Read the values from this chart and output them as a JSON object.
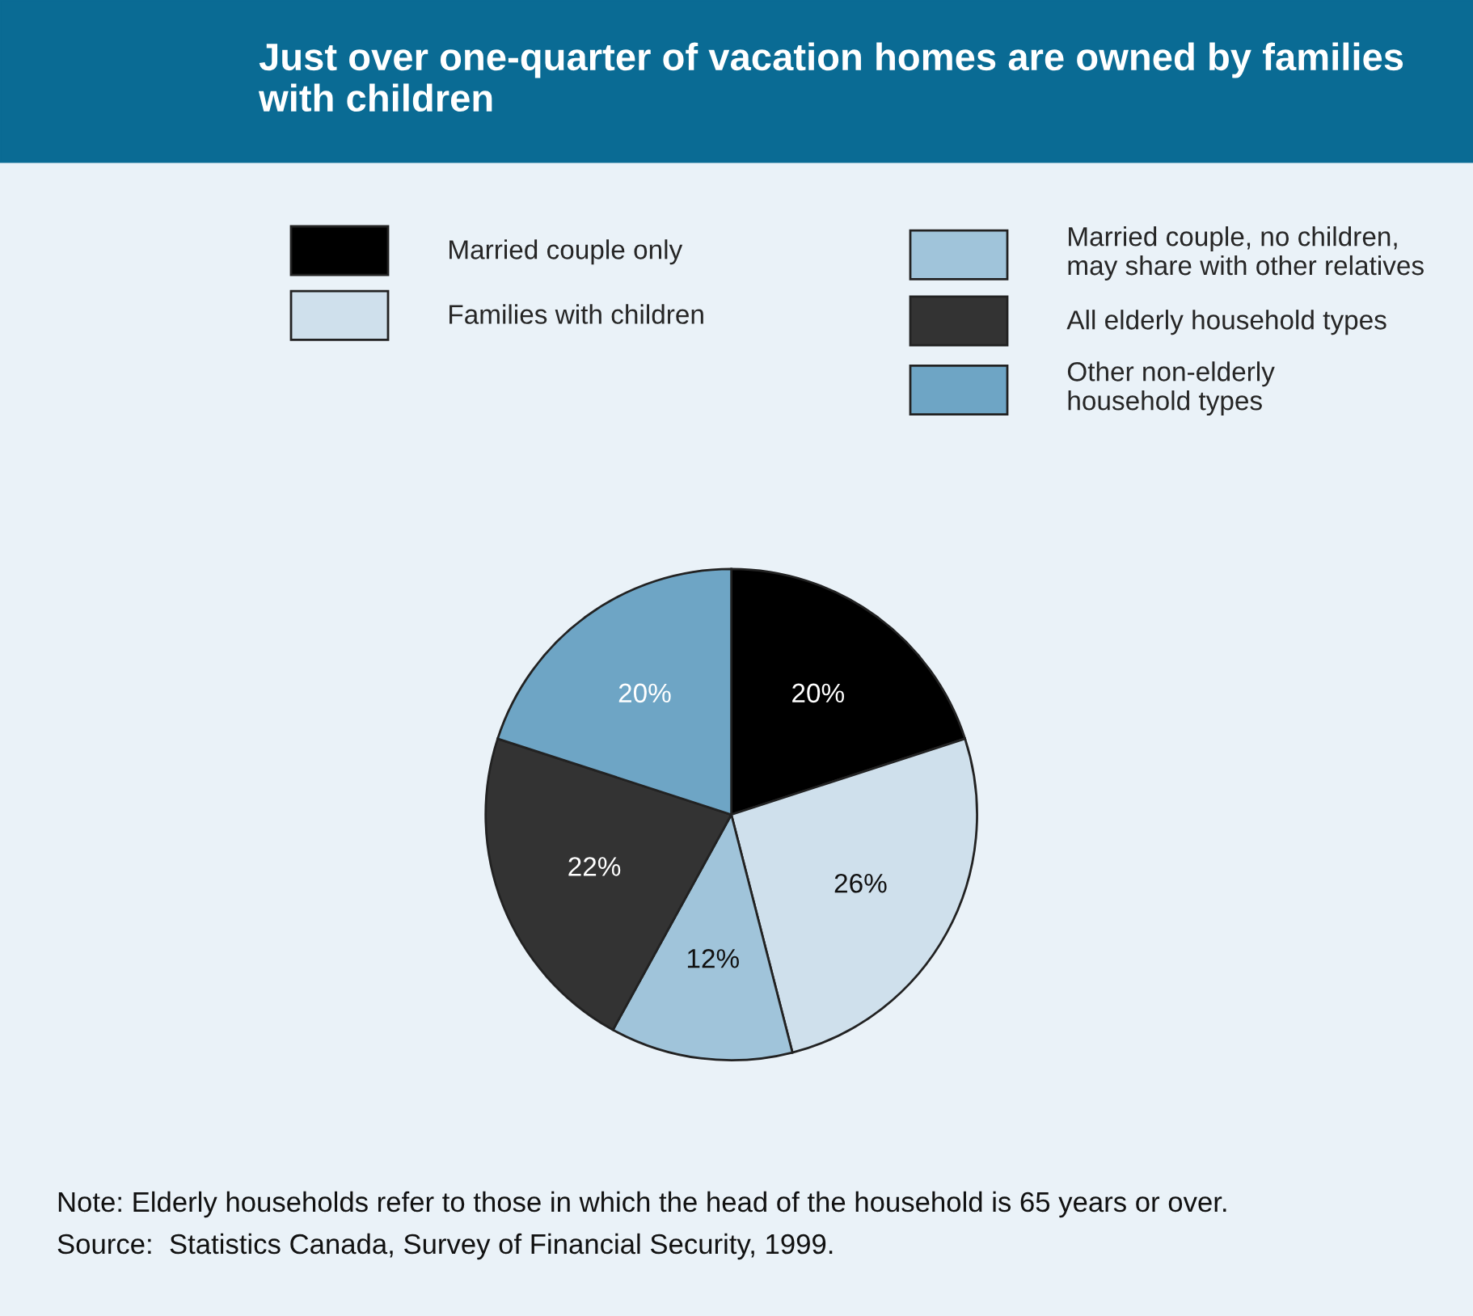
{
  "chart_data": {
    "type": "pie",
    "title": "Just over one-quarter of vacation homes are owned by families with children",
    "categories": [
      "Married couple only",
      "Families with children",
      "Married couple, no children,\nmay share with other relatives",
      "All elderly household types",
      "Other non-elderly\nhousehold types"
    ],
    "values": [
      20,
      26,
      12,
      22,
      20
    ],
    "colors": [
      "#000000",
      "#cfe0ec",
      "#a0c4da",
      "#333333",
      "#6ea5c5"
    ],
    "value_labels": [
      "20%",
      "26%",
      "12%",
      "22%",
      "20%"
    ],
    "legend": "top",
    "annotations": [
      "Note: Elderly households refer to those in which the head of the household is 65 years or over.",
      "Source:  Statistics Canada, Survey of Financial Security, 1999."
    ]
  }
}
